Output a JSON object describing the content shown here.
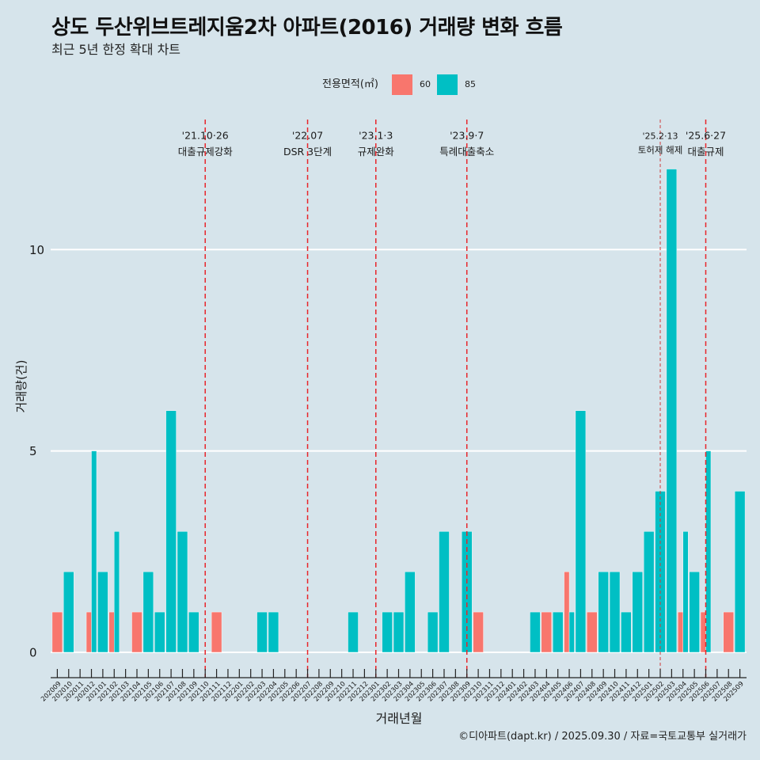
{
  "chart_data": {
    "type": "bar",
    "title": "상도 두산위브트레지움2차 아파트(2016) 거래량 변화 흐름",
    "subtitle": "최근 5년 한정 확대 차트",
    "xlabel": "거래년월",
    "ylabel": "거래량(건)",
    "ylim": [
      -0.63,
      13.23
    ],
    "yticks": [
      0,
      5,
      10
    ],
    "grid": "horizontal major",
    "legend": {
      "title": "전용면적(㎡)",
      "placement": "top"
    },
    "categories": [
      "202009",
      "202010",
      "202011",
      "202012",
      "202101",
      "202102",
      "202103",
      "202104",
      "202105",
      "202106",
      "202107",
      "202108",
      "202109",
      "202110",
      "202111",
      "202112",
      "202201",
      "202202",
      "202203",
      "202204",
      "202205",
      "202206",
      "202207",
      "202208",
      "202209",
      "202210",
      "202211",
      "202212",
      "202301",
      "202302",
      "202303",
      "202304",
      "202305",
      "202306",
      "202307",
      "202308",
      "202309",
      "202310",
      "202311",
      "202312",
      "202401",
      "202402",
      "202403",
      "202404",
      "202405",
      "202406",
      "202407",
      "202408",
      "202409",
      "202410",
      "202411",
      "202412",
      "202501",
      "202502",
      "202503",
      "202504",
      "202505",
      "202506",
      "202507",
      "202508",
      "202509"
    ],
    "series": [
      {
        "name": "60",
        "color": "#F8766D",
        "values": [
          1,
          0,
          0,
          1,
          0,
          1,
          0,
          1,
          0,
          0,
          0,
          0,
          0,
          0,
          1,
          0,
          0,
          0,
          0,
          0,
          0,
          0,
          0,
          0,
          0,
          0,
          0,
          0,
          0,
          0,
          0,
          0,
          0,
          0,
          0,
          0,
          0,
          1,
          0,
          0,
          0,
          0,
          0,
          1,
          0,
          2,
          0,
          1,
          0,
          0,
          0,
          0,
          0,
          0,
          0,
          1,
          0,
          1,
          0,
          1,
          0
        ]
      },
      {
        "name": "85",
        "color": "#00BFC4",
        "values": [
          0,
          2,
          0,
          5,
          2,
          3,
          0,
          0,
          2,
          1,
          6,
          3,
          1,
          0,
          0,
          0,
          0,
          0,
          1,
          1,
          0,
          0,
          0,
          0,
          0,
          0,
          1,
          0,
          0,
          1,
          1,
          2,
          0,
          1,
          3,
          0,
          3,
          0,
          0,
          0,
          0,
          0,
          1,
          0,
          1,
          1,
          6,
          0,
          2,
          2,
          1,
          2,
          3,
          4,
          12,
          3,
          2,
          5,
          0,
          0,
          4
        ]
      }
    ],
    "annotations": [
      {
        "x": "202110",
        "date": "'21.10·26",
        "label": "대출규제강화",
        "style": "dashed",
        "color": "#e8252a"
      },
      {
        "x": "202207",
        "date": "'22.07",
        "label": "DSR 3단계",
        "style": "dashed",
        "color": "#e8252a"
      },
      {
        "x": "202301",
        "date": "'23.1·3",
        "label": "규제완화",
        "style": "dashed",
        "color": "#e8252a"
      },
      {
        "x": "202309",
        "date": "'23.9·7",
        "label": "특례대출축소",
        "style": "dashed",
        "color": "#e8252a"
      },
      {
        "x": "202502",
        "date": "'25.2·13",
        "label": "토허제 해제",
        "style": "dotted",
        "color": "#cf3b3b"
      },
      {
        "x": "202506",
        "date": "'25.6·27",
        "label": "대출규제",
        "style": "dashed",
        "color": "#e8252a"
      }
    ]
  },
  "caption": "©디아파트(dapt.kr) / 2025.09.30 / 자료=국토교통부 실거래가"
}
